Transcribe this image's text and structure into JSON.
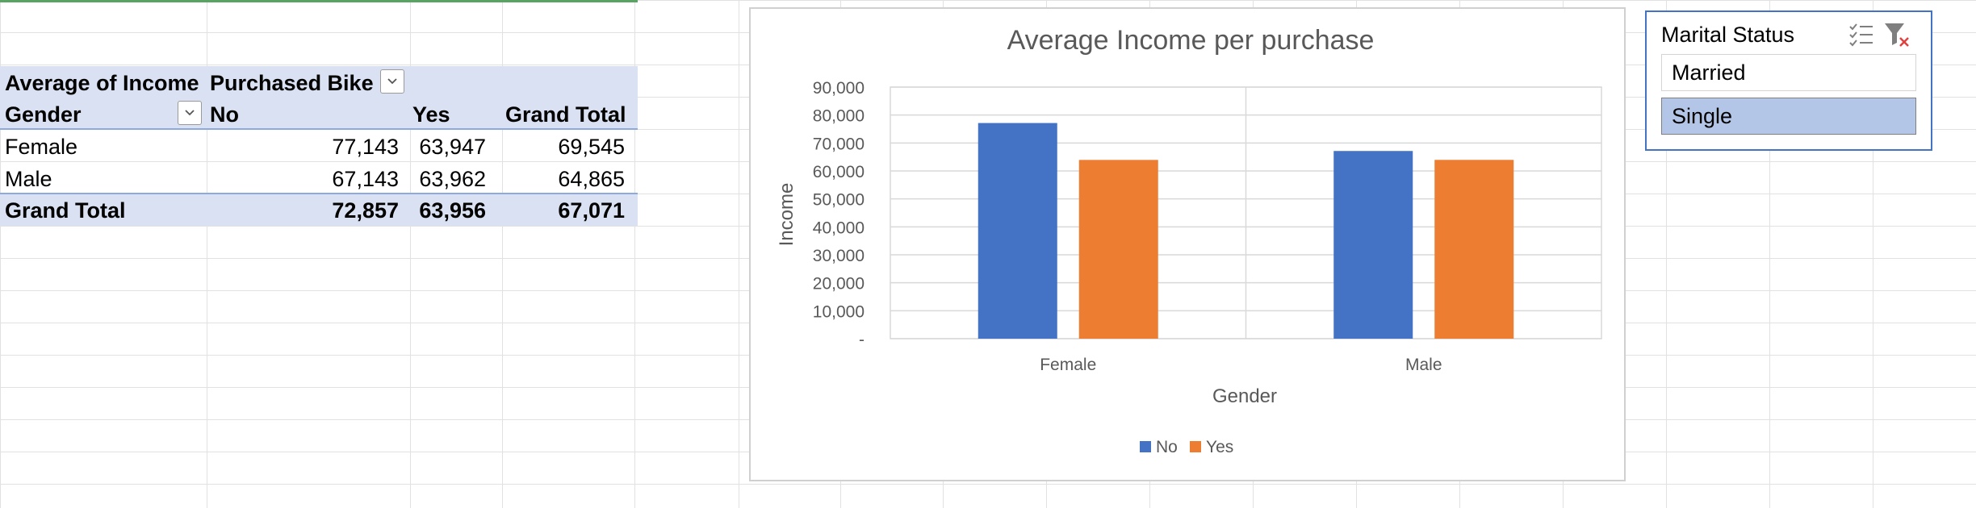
{
  "pivot": {
    "header_row1": {
      "values_label": "Average of Income",
      "column_field": "Purchased Bike"
    },
    "header_row2": {
      "row_field": "Gender",
      "col_no": "No",
      "col_yes": "Yes",
      "col_total": "Grand Total"
    },
    "rows": [
      {
        "label": "Female",
        "no": "77,143",
        "yes": "63,947",
        "total": "69,545"
      },
      {
        "label": "Male",
        "no": "67,143",
        "yes": "63,962",
        "total": "64,865"
      }
    ],
    "grand_total": {
      "label": "Grand Total",
      "no": "72,857",
      "yes": "63,956",
      "total": "67,071"
    }
  },
  "chart_data": {
    "type": "bar",
    "title": "Average Income per purchase",
    "xlabel": "Gender",
    "ylabel": "Income",
    "categories": [
      "Female",
      "Male"
    ],
    "series": [
      {
        "name": "No",
        "values": [
          77143,
          67143
        ],
        "color": "#4472c4"
      },
      {
        "name": "Yes",
        "values": [
          63947,
          63962
        ],
        "color": "#ed7d31"
      }
    ],
    "ylim": [
      0,
      90000
    ],
    "yticks": [
      "-",
      "10,000",
      "20,000",
      "30,000",
      "40,000",
      "50,000",
      "60,000",
      "70,000",
      "80,000",
      "90,000"
    ],
    "grid": true,
    "legend": "bottom"
  },
  "slicer": {
    "title": "Marital Status",
    "items": [
      {
        "label": "Married",
        "selected": false
      },
      {
        "label": "Single",
        "selected": true
      }
    ],
    "icons": [
      "multi-select-icon",
      "clear-filter-icon"
    ],
    "accent": "#4472c4"
  }
}
